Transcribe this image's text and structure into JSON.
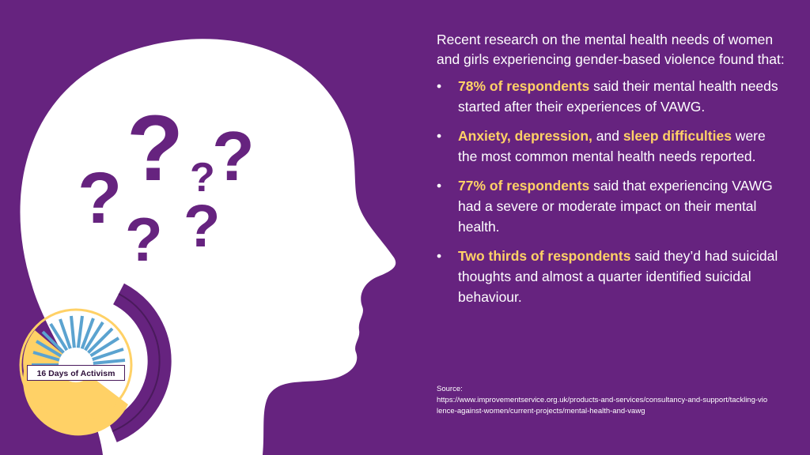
{
  "intro": "Recent research on the mental health needs of women and girls experiencing gender-based violence found that:",
  "bullets": [
    {
      "highlight": "78% of respondents",
      "text": " said their mental health needs started after their experiences of VAWG."
    },
    {
      "highlight": "Anxiety, depression,",
      "text": " and ",
      "highlight2": "sleep difficulties",
      "text2": " were the most common mental health needs reported."
    },
    {
      "highlight": "77% of respondents",
      "text": " said that experiencing VAWG had a severe or moderate impact on their mental health."
    },
    {
      "highlight": "Two thirds of respondents",
      "text": " said they’d had suicidal thoughts and almost a quarter identified suicidal behaviour."
    }
  ],
  "source": {
    "label": "Source:",
    "url": "https://www.improvementservice.org.uk/products-and-services/consultancy-and-support/tackling-violence-against-women/current-projects/mental-health-and-vawg"
  },
  "badge": {
    "label": "16 Days of Activism"
  },
  "colors": {
    "background": "#66237f",
    "head": "#ffffff",
    "question_marks": "#66237f",
    "highlight": "#ffd166",
    "badge_yellow": "#ffd166",
    "badge_blue": "#5ba3d0"
  },
  "icons": [
    "head-silhouette-icon",
    "question-mark-icon",
    "sun-rays-icon"
  ]
}
